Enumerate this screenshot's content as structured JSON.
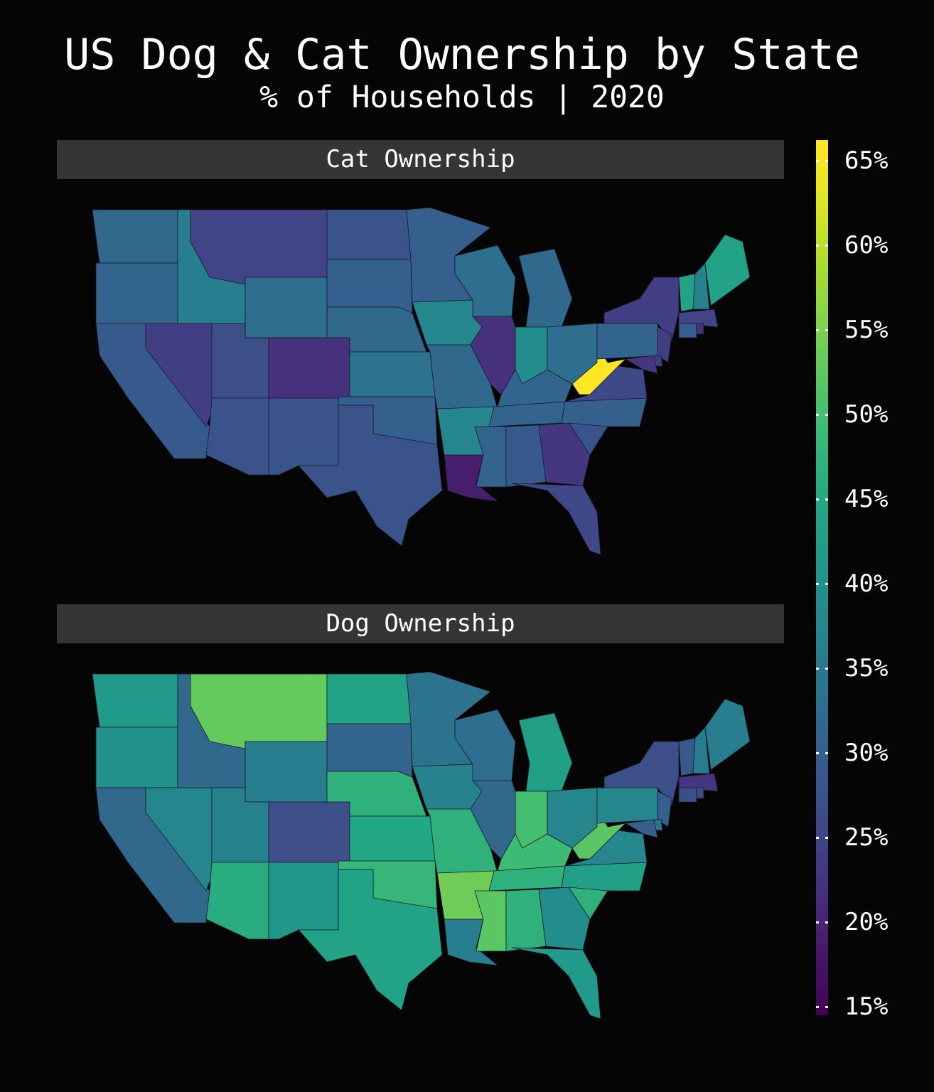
{
  "title": "US Dog & Cat Ownership by State",
  "subtitle": "% of Households | 2020",
  "colorscale": "viridis",
  "colorbar": {
    "range": [
      15,
      65
    ],
    "ticks": [
      "15%",
      "20%",
      "25%",
      "30%",
      "35%",
      "40%",
      "45%",
      "50%",
      "55%",
      "60%",
      "65%"
    ],
    "tick_values": [
      15,
      20,
      25,
      30,
      35,
      40,
      45,
      50,
      55,
      60,
      65
    ]
  },
  "chart_data": [
    {
      "type": "choropleth",
      "title": "Cat Ownership",
      "unit": "% of households",
      "values": {
        "WA": 32,
        "OR": 31,
        "CA": 29,
        "NV": 24,
        "ID": 36,
        "MT": 25,
        "WY": 33,
        "UT": 27,
        "CO": 22,
        "AZ": 28,
        "NM": 28,
        "ND": 28,
        "SD": 30,
        "NE": 32,
        "KS": 34,
        "OK": 30,
        "TX": 28,
        "MN": 30,
        "IA": 38,
        "MO": 32,
        "AR": 38,
        "LA": 19,
        "WI": 33,
        "IL": 22,
        "MS": 31,
        "MI": 32,
        "IN": 39,
        "KY": 31,
        "TN": 31,
        "AL": 29,
        "GA": 23,
        "FL": 26,
        "OH": 33,
        "WV": 65,
        "VA": 26,
        "NC": 30,
        "SC": 28,
        "PA": 31,
        "NY": 24,
        "VT": 44,
        "NH": 37,
        "ME": 44,
        "MA": 25,
        "CT": 30,
        "RI": 22,
        "NJ": 24,
        "DE": 24,
        "MD": 23
      }
    },
    {
      "type": "choropleth",
      "title": "Dog Ownership",
      "unit": "% of households",
      "values": {
        "WA": 42,
        "OR": 40,
        "CA": 32,
        "NV": 38,
        "ID": 32,
        "MT": 53,
        "WY": 36,
        "UT": 37,
        "CO": 27,
        "AZ": 46,
        "NM": 41,
        "ND": 44,
        "SD": 31,
        "NE": 47,
        "KS": 45,
        "OK": 48,
        "TX": 44,
        "MN": 34,
        "IA": 37,
        "MO": 47,
        "AR": 54,
        "LA": 36,
        "WI": 33,
        "IL": 32,
        "MS": 52,
        "MI": 43,
        "IN": 50,
        "KY": 49,
        "TN": 47,
        "AL": 47,
        "GA": 39,
        "FL": 42,
        "OH": 38,
        "WV": 52,
        "VA": 38,
        "NC": 43,
        "SC": 47,
        "PA": 38,
        "NY": 27,
        "VT": 29,
        "NH": 36,
        "ME": 36,
        "MA": 23,
        "CT": 27,
        "RI": 26,
        "NJ": 30,
        "DE": 34,
        "MD": 30
      }
    }
  ]
}
